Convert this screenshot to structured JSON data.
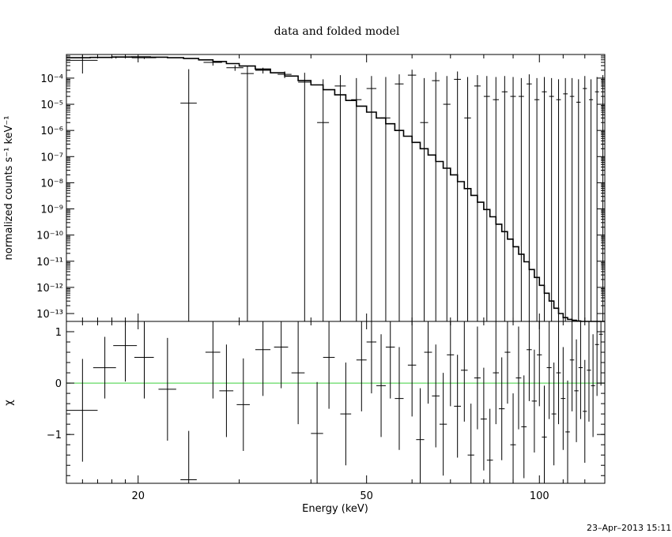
{
  "chart_data": [
    {
      "panel": "upper",
      "type": "line",
      "title": "data and folded model",
      "xlabel": "Energy (keV)",
      "ylabel": "normalized counts s⁻¹ keV⁻¹",
      "x_scale": "log",
      "y_scale": "log",
      "xlim": [
        15,
        130
      ],
      "ylim": [
        5e-14,
        0.0008
      ],
      "y_ticks": [
        {
          "value": 1e-13,
          "label": "10⁻¹³"
        },
        {
          "value": 1e-12,
          "label": "10⁻¹²"
        },
        {
          "value": 1e-11,
          "label": "10⁻¹¹"
        },
        {
          "value": 1e-10,
          "label": "10⁻¹⁰"
        },
        {
          "value": 1e-09,
          "label": "10⁻⁹"
        },
        {
          "value": 1e-08,
          "label": "10⁻⁸"
        },
        {
          "value": 1e-07,
          "label": "10⁻⁷"
        },
        {
          "value": 1e-06,
          "label": "10⁻⁶"
        },
        {
          "value": 1e-05,
          "label": "10⁻⁵"
        },
        {
          "value": 0.0001,
          "label": "10⁻⁴"
        }
      ],
      "model_step": {
        "edges": [
          15,
          16.5,
          18,
          19.5,
          21,
          22.5,
          24,
          25.5,
          27,
          28.5,
          30,
          32,
          34,
          36,
          38,
          40,
          42,
          44,
          46,
          48,
          50,
          52,
          54,
          56,
          58,
          60,
          62,
          64,
          66,
          68,
          70,
          72,
          74,
          76,
          78,
          80,
          82,
          84,
          86,
          88,
          90,
          92,
          94,
          96,
          98,
          100,
          102,
          104,
          106,
          108,
          110,
          112,
          114,
          116,
          118,
          120,
          122,
          124,
          126,
          128,
          130
        ],
        "values": [
          0.0006,
          0.00062,
          0.00064,
          0.00065,
          0.00063,
          0.0006,
          0.00056,
          0.0005,
          0.00043,
          0.00036,
          0.00029,
          0.00022,
          0.00016,
          0.00012,
          8e-05,
          5.5e-05,
          3.6e-05,
          2.3e-05,
          1.4e-05,
          8.5e-06,
          5e-06,
          3e-06,
          1.8e-06,
          1e-06,
          6e-07,
          3.5e-07,
          2e-07,
          1.15e-07,
          6.5e-08,
          3.6e-08,
          2e-08,
          1.1e-08,
          6e-09,
          3.3e-09,
          1.8e-09,
          9.5e-10,
          5e-10,
          2.6e-10,
          1.35e-10,
          7e-11,
          3.6e-11,
          1.85e-11,
          9.5e-12,
          4.8e-12,
          2.4e-12,
          1.2e-12,
          6e-13,
          3e-13,
          1.6e-13,
          1e-13,
          7e-14,
          6e-14,
          5.5e-14,
          5.2e-14,
          5e-14,
          5e-14,
          5e-14,
          5e-14,
          5e-14,
          5e-14
        ]
      },
      "data_points": [
        {
          "x": 16.0,
          "xerr": 1.0,
          "y": 0.00048,
          "ylo": 0.00015,
          "yhi": 0.00075
        },
        {
          "x": 18.3,
          "xerr": 1.3,
          "y": 0.00062,
          "ylo": 0.00056,
          "yhi": 0.00068
        },
        {
          "x": 20.5,
          "xerr": 1.0,
          "y": 0.0006,
          "ylo": 0.00054,
          "yhi": 0.00066
        },
        {
          "x": 24.5,
          "xerr": 0.8,
          "y": 1.1e-05,
          "ylo": 5e-14,
          "yhi": 0.00022
        },
        {
          "x": 27.0,
          "xerr": 1.0,
          "y": 0.0004,
          "ylo": 0.0003,
          "yhi": 0.0005
        },
        {
          "x": 29.5,
          "xerr": 1.0,
          "y": 0.00025,
          "ylo": 0.00019,
          "yhi": 0.00031
        },
        {
          "x": 31.0,
          "xerr": 0.8,
          "y": 0.00015,
          "ylo": 5e-14,
          "yhi": 0.00028
        },
        {
          "x": 33.0,
          "xerr": 1.0,
          "y": 0.0002,
          "ylo": 0.00015,
          "yhi": 0.00025
        },
        {
          "x": 36.0,
          "xerr": 1.0,
          "y": 0.00014,
          "ylo": 0.0001,
          "yhi": 0.00018
        },
        {
          "x": 39.0,
          "xerr": 1.0,
          "y": 7e-05,
          "ylo": 5e-14,
          "yhi": 0.00016
        },
        {
          "x": 42.0,
          "xerr": 1.0,
          "y": 2e-06,
          "ylo": 5e-14,
          "yhi": 9e-05
        },
        {
          "x": 45.0,
          "xerr": 1.0,
          "y": 5e-05,
          "ylo": 5e-14,
          "yhi": 0.00013
        },
        {
          "x": 48.0,
          "xerr": 1.0,
          "y": 1.5e-05,
          "ylo": 5e-14,
          "yhi": 0.0001
        },
        {
          "x": 51.0,
          "xerr": 1.0,
          "y": 4e-05,
          "ylo": 5e-14,
          "yhi": 0.00012
        },
        {
          "x": 54.0,
          "xerr": 1.0,
          "y": 3e-06,
          "ylo": 5e-14,
          "yhi": 0.00011
        },
        {
          "x": 57.0,
          "xerr": 1.0,
          "y": 6e-05,
          "ylo": 5e-14,
          "yhi": 0.00014
        },
        {
          "x": 60.0,
          "xerr": 1.0,
          "y": 0.00013,
          "ylo": 5e-14,
          "yhi": 0.00021
        },
        {
          "x": 63.0,
          "xerr": 1.0,
          "y": 2e-06,
          "ylo": 5e-14,
          "yhi": 0.0001
        },
        {
          "x": 66.0,
          "xerr": 1.0,
          "y": 8e-05,
          "ylo": 5e-14,
          "yhi": 0.00017
        },
        {
          "x": 69.0,
          "xerr": 1.0,
          "y": 1e-05,
          "ylo": 5e-14,
          "yhi": 0.00012
        },
        {
          "x": 72.0,
          "xerr": 1.0,
          "y": 9e-05,
          "ylo": 5e-14,
          "yhi": 0.00018
        },
        {
          "x": 75.0,
          "xerr": 1.0,
          "y": 3e-06,
          "ylo": 5e-14,
          "yhi": 0.00011
        },
        {
          "x": 78.0,
          "xerr": 1.0,
          "y": 5e-05,
          "ylo": 5e-14,
          "yhi": 0.00013
        },
        {
          "x": 81.0,
          "xerr": 1.0,
          "y": 2e-05,
          "ylo": 5e-14,
          "yhi": 0.00012
        },
        {
          "x": 84.0,
          "xerr": 1.0,
          "y": 1.5e-05,
          "ylo": 5e-14,
          "yhi": 0.00011
        },
        {
          "x": 87.0,
          "xerr": 1.0,
          "y": 3e-05,
          "ylo": 5e-14,
          "yhi": 0.00012
        },
        {
          "x": 90.0,
          "xerr": 1.0,
          "y": 2e-05,
          "ylo": 5e-14,
          "yhi": 0.00011
        },
        {
          "x": 93.0,
          "xerr": 1.0,
          "y": 2e-05,
          "ylo": 5e-14,
          "yhi": 0.0001
        },
        {
          "x": 96.0,
          "xerr": 1.0,
          "y": 6e-05,
          "ylo": 5e-14,
          "yhi": 0.00014
        },
        {
          "x": 99.0,
          "xerr": 1.0,
          "y": 1.5e-05,
          "ylo": 5e-14,
          "yhi": 0.0001
        },
        {
          "x": 102.0,
          "xerr": 1.0,
          "y": 3e-05,
          "ylo": 5e-14,
          "yhi": 0.00011
        },
        {
          "x": 105.0,
          "xerr": 1.0,
          "y": 2e-05,
          "ylo": 5e-14,
          "yhi": 0.0001
        },
        {
          "x": 108.0,
          "xerr": 1.0,
          "y": 1.5e-05,
          "ylo": 5e-14,
          "yhi": 9e-05
        },
        {
          "x": 111.0,
          "xerr": 1.0,
          "y": 2.5e-05,
          "ylo": 5e-14,
          "yhi": 0.0001
        },
        {
          "x": 114.0,
          "xerr": 1.0,
          "y": 2e-05,
          "ylo": 5e-14,
          "yhi": 0.0001
        },
        {
          "x": 117.0,
          "xerr": 1.0,
          "y": 1.2e-05,
          "ylo": 5e-14,
          "yhi": 9e-05
        },
        {
          "x": 120.0,
          "xerr": 1.0,
          "y": 4e-05,
          "ylo": 5e-14,
          "yhi": 0.00012
        },
        {
          "x": 123.0,
          "xerr": 1.0,
          "y": 1.5e-05,
          "ylo": 5e-14,
          "yhi": 9e-05
        },
        {
          "x": 126.0,
          "xerr": 1.0,
          "y": 3e-05,
          "ylo": 5e-14,
          "yhi": 0.00011
        },
        {
          "x": 129.0,
          "xerr": 1.0,
          "y": 5e-05,
          "ylo": 5e-14,
          "yhi": 0.00013
        }
      ]
    },
    {
      "panel": "lower",
      "type": "scatter",
      "xlabel": "Energy (keV)",
      "ylabel": "χ",
      "x_scale": "log",
      "xlim": [
        15,
        130
      ],
      "ylim": [
        -1.95,
        1.2
      ],
      "y_ticks": [
        {
          "value": -1,
          "label": "−1"
        },
        {
          "value": 0,
          "label": "0"
        },
        {
          "value": 1,
          "label": "1"
        }
      ],
      "x_ticks": [
        {
          "value": 20,
          "label": "20"
        },
        {
          "value": 50,
          "label": "50"
        },
        {
          "value": 100,
          "label": "100"
        }
      ],
      "zero_line": {
        "value": 0,
        "color": "#3ccf3c"
      },
      "residuals": [
        {
          "x": 16.0,
          "xerr": 1.0,
          "y": -0.53,
          "err": 1.0
        },
        {
          "x": 17.5,
          "xerr": 0.8,
          "y": 0.3,
          "err": 0.6
        },
        {
          "x": 19.0,
          "xerr": 0.9,
          "y": 0.73,
          "err": 0.7
        },
        {
          "x": 20.5,
          "xerr": 0.8,
          "y": 0.5,
          "err": 0.8
        },
        {
          "x": 22.5,
          "xerr": 0.8,
          "y": -0.12,
          "err": 1.0
        },
        {
          "x": 24.5,
          "xerr": 0.8,
          "y": -1.88,
          "err": 0.95
        },
        {
          "x": 27.0,
          "xerr": 0.8,
          "y": 0.6,
          "err": 0.9
        },
        {
          "x": 28.5,
          "xerr": 0.8,
          "y": -0.15,
          "err": 0.9
        },
        {
          "x": 30.5,
          "xerr": 0.8,
          "y": -0.42,
          "err": 0.9
        },
        {
          "x": 33.0,
          "xerr": 1.0,
          "y": 0.65,
          "err": 0.9
        },
        {
          "x": 35.5,
          "xerr": 1.0,
          "y": 0.7,
          "err": 0.8
        },
        {
          "x": 38.0,
          "xerr": 1.0,
          "y": 0.2,
          "err": 1.0
        },
        {
          "x": 41.0,
          "xerr": 1.0,
          "y": -0.98,
          "err": 1.0
        },
        {
          "x": 43.0,
          "xerr": 1.0,
          "y": 0.5,
          "err": 1.0
        },
        {
          "x": 46.0,
          "xerr": 1.0,
          "y": -0.6,
          "err": 1.0
        },
        {
          "x": 49.0,
          "xerr": 1.0,
          "y": 0.45,
          "err": 1.0
        },
        {
          "x": 51.0,
          "xerr": 1.0,
          "y": 0.8,
          "err": 1.0
        },
        {
          "x": 53.0,
          "xerr": 1.0,
          "y": -0.05,
          "err": 1.0
        },
        {
          "x": 55.0,
          "xerr": 1.0,
          "y": 0.7,
          "err": 1.0
        },
        {
          "x": 57.0,
          "xerr": 1.0,
          "y": -0.3,
          "err": 1.0
        },
        {
          "x": 60.0,
          "xerr": 1.0,
          "y": 0.35,
          "err": 1.0
        },
        {
          "x": 62.0,
          "xerr": 1.0,
          "y": -1.1,
          "err": 1.0
        },
        {
          "x": 64.0,
          "xerr": 1.0,
          "y": 0.6,
          "err": 1.0
        },
        {
          "x": 66.0,
          "xerr": 1.0,
          "y": -0.25,
          "err": 1.0
        },
        {
          "x": 68.0,
          "xerr": 1.0,
          "y": -0.8,
          "err": 1.0
        },
        {
          "x": 70.0,
          "xerr": 1.0,
          "y": 0.55,
          "err": 1.0
        },
        {
          "x": 72.0,
          "xerr": 1.0,
          "y": -0.45,
          "err": 1.0
        },
        {
          "x": 74.0,
          "xerr": 1.0,
          "y": 0.25,
          "err": 1.0
        },
        {
          "x": 76.0,
          "xerr": 1.0,
          "y": -1.4,
          "err": 1.0
        },
        {
          "x": 78.0,
          "xerr": 1.0,
          "y": 0.1,
          "err": 1.0
        },
        {
          "x": 80.0,
          "xerr": 1.0,
          "y": -0.7,
          "err": 1.0
        },
        {
          "x": 82.0,
          "xerr": 1.0,
          "y": -1.5,
          "err": 1.0
        },
        {
          "x": 84.0,
          "xerr": 1.0,
          "y": 0.2,
          "err": 1.0
        },
        {
          "x": 86.0,
          "xerr": 1.0,
          "y": -0.5,
          "err": 1.0
        },
        {
          "x": 88.0,
          "xerr": 1.0,
          "y": 0.6,
          "err": 1.0
        },
        {
          "x": 90.0,
          "xerr": 1.0,
          "y": -1.2,
          "err": 1.0
        },
        {
          "x": 92.0,
          "xerr": 1.0,
          "y": 0.1,
          "err": 1.0
        },
        {
          "x": 94.0,
          "xerr": 1.0,
          "y": -0.85,
          "err": 1.0
        },
        {
          "x": 96.0,
          "xerr": 1.0,
          "y": 0.65,
          "err": 1.0
        },
        {
          "x": 98.0,
          "xerr": 1.0,
          "y": -0.35,
          "err": 1.0
        },
        {
          "x": 100.0,
          "xerr": 1.0,
          "y": 0.55,
          "err": 1.0
        },
        {
          "x": 102.0,
          "xerr": 1.0,
          "y": -1.05,
          "err": 1.0
        },
        {
          "x": 104.0,
          "xerr": 1.0,
          "y": 0.3,
          "err": 1.0
        },
        {
          "x": 106.0,
          "xerr": 1.0,
          "y": -0.6,
          "err": 1.0
        },
        {
          "x": 108.0,
          "xerr": 1.0,
          "y": 0.2,
          "err": 1.0
        },
        {
          "x": 110.0,
          "xerr": 1.0,
          "y": -0.3,
          "err": 1.0
        },
        {
          "x": 112.0,
          "xerr": 1.0,
          "y": -0.95,
          "err": 1.0
        },
        {
          "x": 114.0,
          "xerr": 1.0,
          "y": 0.45,
          "err": 1.0
        },
        {
          "x": 116.0,
          "xerr": 1.0,
          "y": -0.15,
          "err": 1.0
        },
        {
          "x": 118.0,
          "xerr": 1.0,
          "y": 0.3,
          "err": 1.0
        },
        {
          "x": 120.0,
          "xerr": 1.0,
          "y": -0.55,
          "err": 1.0
        },
        {
          "x": 122.0,
          "xerr": 1.0,
          "y": 0.25,
          "err": 1.0
        },
        {
          "x": 124.0,
          "xerr": 1.0,
          "y": -0.05,
          "err": 1.0
        },
        {
          "x": 126.0,
          "xerr": 1.0,
          "y": 0.75,
          "err": 1.0
        },
        {
          "x": 128.0,
          "xerr": 1.0,
          "y": 0.95,
          "err": 1.0
        }
      ]
    }
  ],
  "timestamp": "23–Apr–2013 15:11"
}
